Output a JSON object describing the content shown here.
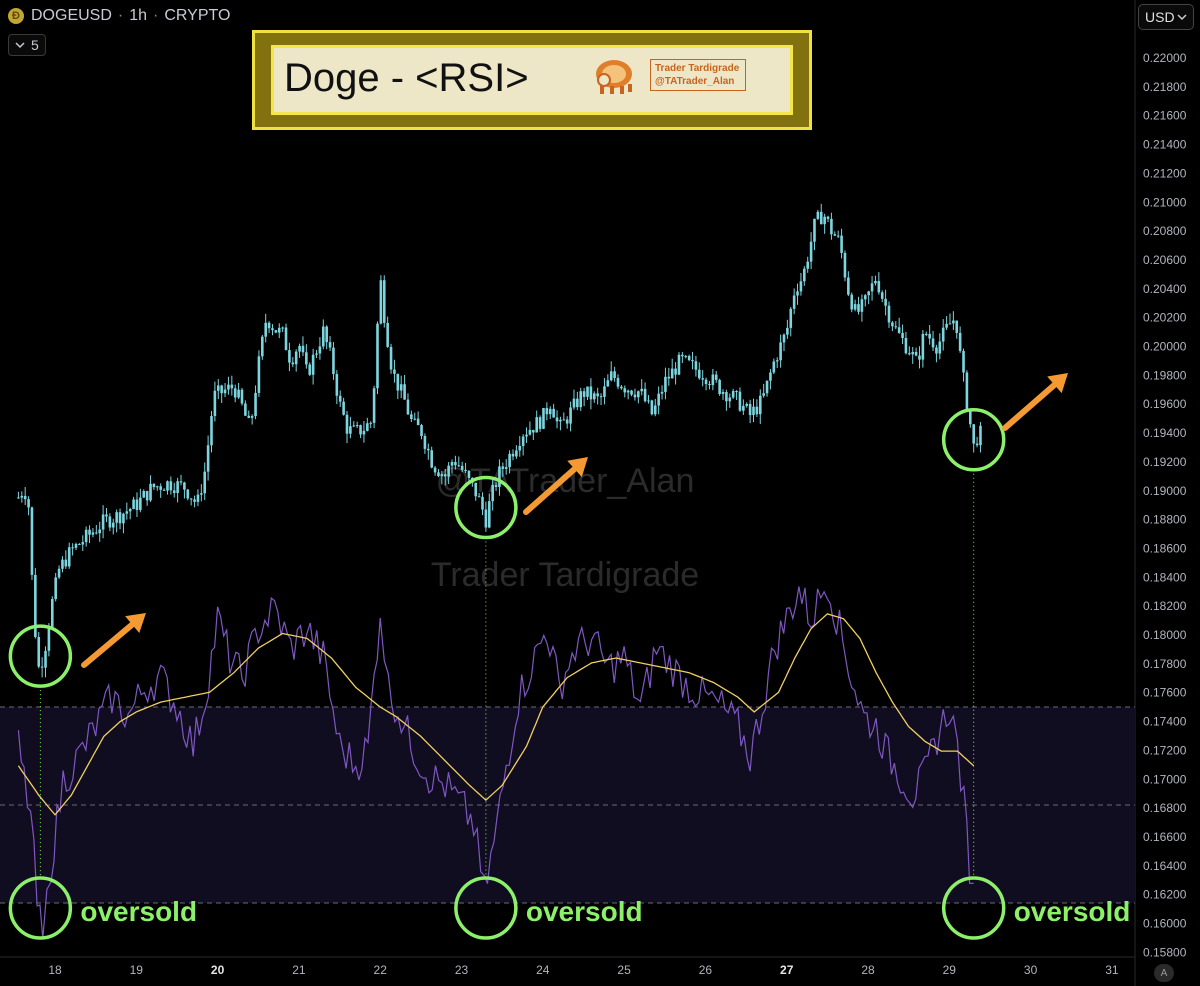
{
  "header": {
    "symbol": "DOGEUSD",
    "interval": "1h",
    "market": "CRYPTO",
    "indicator_count": "5",
    "currency": "USD"
  },
  "banner": {
    "title": "Doge - <RSI>",
    "brand_name": "Trader Tardigrade",
    "brand_handle": "@TATrader_Alan"
  },
  "watermark": {
    "handle": "@TATrader_Alan",
    "name": "Trader Tardigrade"
  },
  "annotations": {
    "oversold": "oversold",
    "auto_scale": "A"
  },
  "colors": {
    "candle": "#7dd6df",
    "rsi": "#7e57c2",
    "rsi_ma": "#f0d060",
    "circle": "#8cf06a",
    "arrow": "#f59a32",
    "band": "#110d20"
  },
  "chart_data": {
    "type": "candlestick",
    "x_ticks": [
      "18",
      "19",
      "20",
      "21",
      "22",
      "23",
      "24",
      "25",
      "26",
      "27",
      "28",
      "29",
      "30",
      "31"
    ],
    "y_ticks": [
      "0.22000",
      "0.21800",
      "0.21600",
      "0.21400",
      "0.21200",
      "0.21000",
      "0.20800",
      "0.20600",
      "0.20400",
      "0.20200",
      "0.20000",
      "0.19800",
      "0.19600",
      "0.19400",
      "0.19200",
      "0.19000",
      "0.18800",
      "0.18600",
      "0.18400",
      "0.18200",
      "0.18000",
      "0.17800",
      "0.17600",
      "0.17400",
      "0.17200",
      "0.17000",
      "0.16800",
      "0.16600",
      "0.16400",
      "0.16200",
      "0.16000",
      "0.15800"
    ],
    "ylim": [
      0.158,
      0.222
    ],
    "xlim": [
      17.55,
      31.25
    ],
    "price_close": [
      [
        17.55,
        0.1895
      ],
      [
        17.62,
        0.1902
      ],
      [
        17.68,
        0.1888
      ],
      [
        17.72,
        0.1835
      ],
      [
        17.76,
        0.18
      ],
      [
        17.8,
        0.1777
      ],
      [
        17.84,
        0.1782
      ],
      [
        17.88,
        0.1792
      ],
      [
        17.95,
        0.1818
      ],
      [
        18.05,
        0.1845
      ],
      [
        18.2,
        0.1858
      ],
      [
        18.4,
        0.1868
      ],
      [
        18.6,
        0.1878
      ],
      [
        18.8,
        0.1883
      ],
      [
        19.0,
        0.189
      ],
      [
        19.2,
        0.1902
      ],
      [
        19.4,
        0.1905
      ],
      [
        19.6,
        0.1902
      ],
      [
        19.75,
        0.189
      ],
      [
        19.85,
        0.1915
      ],
      [
        19.95,
        0.1965
      ],
      [
        20.05,
        0.1968
      ],
      [
        20.2,
        0.1972
      ],
      [
        20.3,
        0.1958
      ],
      [
        20.4,
        0.1942
      ],
      [
        20.5,
        0.1985
      ],
      [
        20.6,
        0.202
      ],
      [
        20.7,
        0.2012
      ],
      [
        20.8,
        0.2008
      ],
      [
        20.9,
        0.199
      ],
      [
        21.0,
        0.2002
      ],
      [
        21.1,
        0.198
      ],
      [
        21.2,
        0.1995
      ],
      [
        21.3,
        0.201
      ],
      [
        21.4,
        0.199
      ],
      [
        21.5,
        0.196
      ],
      [
        21.6,
        0.1942
      ],
      [
        21.7,
        0.194
      ],
      [
        21.8,
        0.1943
      ],
      [
        21.9,
        0.1948
      ],
      [
        22.0,
        0.2048
      ],
      [
        22.05,
        0.2022
      ],
      [
        22.15,
        0.1982
      ],
      [
        22.3,
        0.1962
      ],
      [
        22.4,
        0.1945
      ],
      [
        22.5,
        0.1942
      ],
      [
        22.65,
        0.1918
      ],
      [
        22.8,
        0.191
      ],
      [
        22.9,
        0.1922
      ],
      [
        23.0,
        0.1915
      ],
      [
        23.1,
        0.1905
      ],
      [
        23.18,
        0.1898
      ],
      [
        23.25,
        0.1888
      ],
      [
        23.3,
        0.188
      ],
      [
        23.35,
        0.1892
      ],
      [
        23.45,
        0.191
      ],
      [
        23.6,
        0.1925
      ],
      [
        23.75,
        0.194
      ],
      [
        23.9,
        0.1945
      ],
      [
        24.0,
        0.195
      ],
      [
        24.1,
        0.1962
      ],
      [
        24.2,
        0.1942
      ],
      [
        24.35,
        0.1955
      ],
      [
        24.5,
        0.1968
      ],
      [
        24.7,
        0.1962
      ],
      [
        24.85,
        0.198
      ],
      [
        25.0,
        0.1972
      ],
      [
        25.2,
        0.1968
      ],
      [
        25.35,
        0.1952
      ],
      [
        25.5,
        0.1975
      ],
      [
        25.7,
        0.199
      ],
      [
        25.85,
        0.1985
      ],
      [
        26.0,
        0.198
      ],
      [
        26.2,
        0.197
      ],
      [
        26.4,
        0.1962
      ],
      [
        26.55,
        0.1952
      ],
      [
        26.7,
        0.1962
      ],
      [
        26.85,
        0.199
      ],
      [
        27.0,
        0.201
      ],
      [
        27.1,
        0.204
      ],
      [
        27.2,
        0.2048
      ],
      [
        27.35,
        0.2085
      ],
      [
        27.45,
        0.2092
      ],
      [
        27.55,
        0.208
      ],
      [
        27.65,
        0.2072
      ],
      [
        27.75,
        0.204
      ],
      [
        27.85,
        0.2022
      ],
      [
        27.95,
        0.2028
      ],
      [
        28.1,
        0.2048
      ],
      [
        28.2,
        0.203
      ],
      [
        28.35,
        0.201
      ],
      [
        28.5,
        0.1998
      ],
      [
        28.6,
        0.1988
      ],
      [
        28.7,
        0.201
      ],
      [
        28.85,
        0.2
      ],
      [
        29.0,
        0.2015
      ],
      [
        29.08,
        0.202
      ],
      [
        29.15,
        0.1985
      ],
      [
        29.22,
        0.196
      ],
      [
        29.3,
        0.193
      ],
      [
        29.35,
        0.1938
      ],
      [
        29.42,
        0.194
      ]
    ],
    "rsi": [
      [
        17.55,
        62
      ],
      [
        17.62,
        55
      ],
      [
        17.7,
        48
      ],
      [
        17.78,
        30
      ],
      [
        17.85,
        22
      ],
      [
        17.95,
        38
      ],
      [
        18.1,
        55
      ],
      [
        18.3,
        60
      ],
      [
        18.5,
        66
      ],
      [
        18.7,
        72
      ],
      [
        18.9,
        68
      ],
      [
        19.1,
        74
      ],
      [
        19.3,
        76
      ],
      [
        19.5,
        70
      ],
      [
        19.7,
        62
      ],
      [
        19.85,
        72
      ],
      [
        20.0,
        88
      ],
      [
        20.15,
        80
      ],
      [
        20.3,
        76
      ],
      [
        20.5,
        86
      ],
      [
        20.7,
        90
      ],
      [
        20.9,
        82
      ],
      [
        21.1,
        86
      ],
      [
        21.3,
        80
      ],
      [
        21.5,
        62
      ],
      [
        21.7,
        58
      ],
      [
        21.85,
        62
      ],
      [
        22.0,
        90
      ],
      [
        22.1,
        74
      ],
      [
        22.3,
        66
      ],
      [
        22.45,
        60
      ],
      [
        22.6,
        56
      ],
      [
        22.8,
        54
      ],
      [
        23.0,
        50
      ],
      [
        23.15,
        46
      ],
      [
        23.28,
        32
      ],
      [
        23.4,
        42
      ],
      [
        23.55,
        58
      ],
      [
        23.7,
        72
      ],
      [
        23.9,
        80
      ],
      [
        24.05,
        86
      ],
      [
        24.2,
        74
      ],
      [
        24.4,
        82
      ],
      [
        24.6,
        84
      ],
      [
        24.8,
        78
      ],
      [
        25.0,
        80
      ],
      [
        25.2,
        70
      ],
      [
        25.4,
        82
      ],
      [
        25.6,
        78
      ],
      [
        25.8,
        74
      ],
      [
        26.0,
        72
      ],
      [
        26.2,
        70
      ],
      [
        26.4,
        66
      ],
      [
        26.55,
        60
      ],
      [
        26.7,
        70
      ],
      [
        26.85,
        82
      ],
      [
        27.0,
        88
      ],
      [
        27.15,
        94
      ],
      [
        27.3,
        88
      ],
      [
        27.5,
        96
      ],
      [
        27.65,
        86
      ],
      [
        27.8,
        76
      ],
      [
        27.95,
        68
      ],
      [
        28.1,
        66
      ],
      [
        28.25,
        60
      ],
      [
        28.4,
        56
      ],
      [
        28.55,
        52
      ],
      [
        28.7,
        56
      ],
      [
        28.85,
        64
      ],
      [
        29.0,
        70
      ],
      [
        29.1,
        62
      ],
      [
        29.18,
        50
      ],
      [
        29.25,
        38
      ],
      [
        29.3,
        34
      ]
    ],
    "rsi_ma": [
      [
        17.55,
        58
      ],
      [
        17.8,
        52
      ],
      [
        18.0,
        48
      ],
      [
        18.2,
        52
      ],
      [
        18.4,
        58
      ],
      [
        18.6,
        64
      ],
      [
        18.8,
        67
      ],
      [
        19.0,
        69
      ],
      [
        19.3,
        71
      ],
      [
        19.6,
        72
      ],
      [
        19.9,
        73
      ],
      [
        20.2,
        77
      ],
      [
        20.5,
        82
      ],
      [
        20.8,
        85
      ],
      [
        21.1,
        84
      ],
      [
        21.4,
        80
      ],
      [
        21.7,
        74
      ],
      [
        22.0,
        70
      ],
      [
        22.2,
        68
      ],
      [
        22.5,
        64
      ],
      [
        22.8,
        59
      ],
      [
        23.1,
        54
      ],
      [
        23.3,
        51
      ],
      [
        23.5,
        54
      ],
      [
        23.8,
        62
      ],
      [
        24.0,
        70
      ],
      [
        24.3,
        76
      ],
      [
        24.6,
        79
      ],
      [
        24.9,
        80
      ],
      [
        25.2,
        79
      ],
      [
        25.5,
        78
      ],
      [
        25.8,
        77
      ],
      [
        26.1,
        75
      ],
      [
        26.4,
        72
      ],
      [
        26.6,
        69
      ],
      [
        26.9,
        73
      ],
      [
        27.1,
        80
      ],
      [
        27.3,
        86
      ],
      [
        27.5,
        89
      ],
      [
        27.7,
        88
      ],
      [
        27.9,
        84
      ],
      [
        28.1,
        77
      ],
      [
        28.3,
        71
      ],
      [
        28.5,
        66
      ],
      [
        28.7,
        63
      ],
      [
        28.9,
        61
      ],
      [
        29.1,
        61
      ],
      [
        29.3,
        58
      ]
    ],
    "rsi_bands": [
      30,
      50,
      70
    ],
    "annotations": [
      {
        "type": "circle",
        "x": 17.82,
        "y": 0.1785,
        "label": "oversold"
      },
      {
        "type": "circle",
        "x": 23.3,
        "y": 0.1888,
        "label": "oversold"
      },
      {
        "type": "circle",
        "x": 29.3,
        "y": 0.1935,
        "label": "oversold"
      }
    ]
  }
}
